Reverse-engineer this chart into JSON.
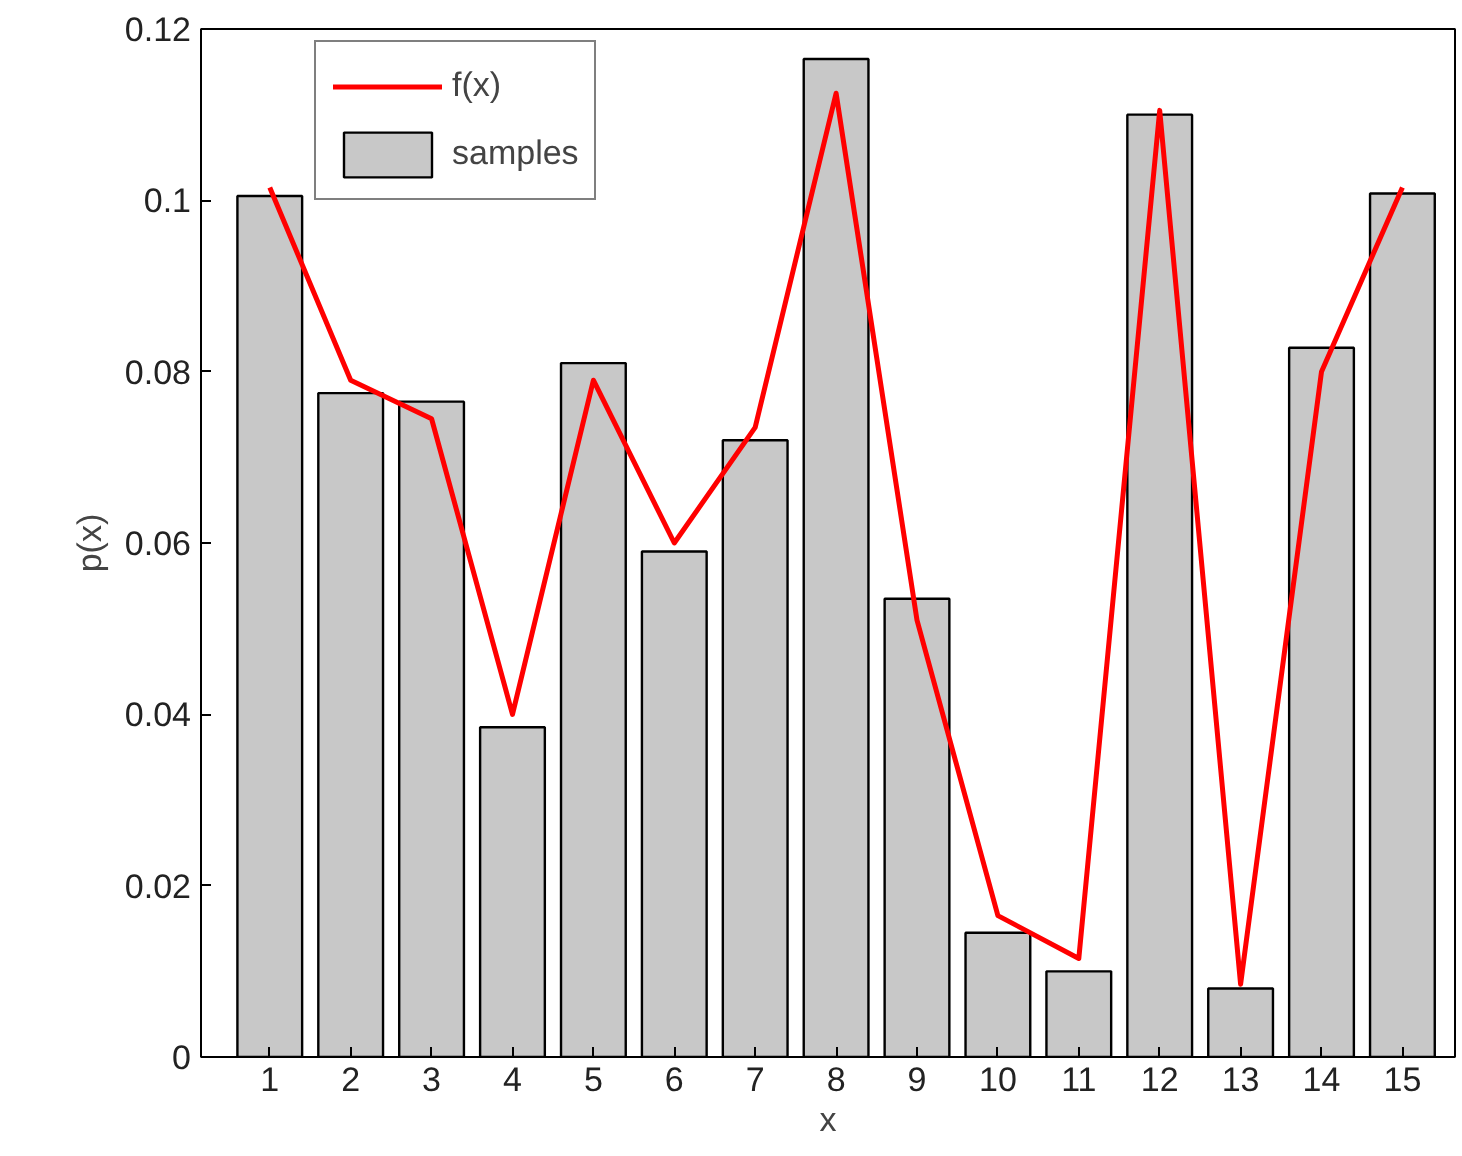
{
  "chart_data": {
    "type": "bar",
    "xlabel": "x",
    "ylabel": "p(x)",
    "x": [
      1,
      2,
      3,
      4,
      5,
      6,
      7,
      8,
      9,
      10,
      11,
      12,
      13,
      14,
      15
    ],
    "series": [
      {
        "name": "samples",
        "color": "#c8c8c8",
        "values": [
          0.1005,
          0.0775,
          0.0765,
          0.0385,
          0.081,
          0.059,
          0.072,
          0.1165,
          0.0535,
          0.0145,
          0.01,
          0.11,
          0.008,
          0.0828,
          0.1008
        ]
      },
      {
        "name": "f(x)",
        "type": "line",
        "color": "#ff0000",
        "values": [
          0.1015,
          0.079,
          0.0745,
          0.04,
          0.079,
          0.06,
          0.0735,
          0.1125,
          0.051,
          0.0165,
          0.0115,
          0.1105,
          0.0085,
          0.08,
          0.1015
        ]
      }
    ],
    "xlim": [
      0.15,
      15.65
    ],
    "xticks": [
      1,
      2,
      3,
      4,
      5,
      6,
      7,
      8,
      9,
      10,
      11,
      12,
      13,
      14,
      15
    ],
    "ylim": [
      0,
      0.12
    ],
    "yticks": [
      0,
      0.02,
      0.04,
      0.06,
      0.08,
      0.1,
      0.12
    ],
    "grid": false,
    "legend": "top left",
    "marker": "none",
    "line_style": "solid"
  }
}
